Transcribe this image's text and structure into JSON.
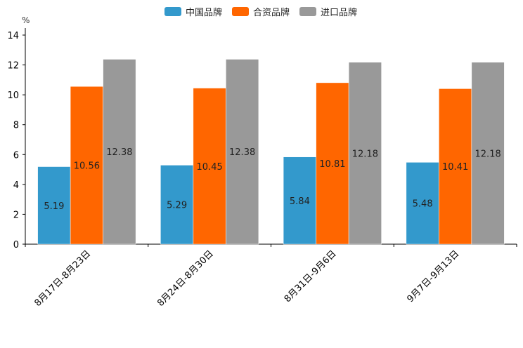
{
  "chart_data": {
    "type": "bar",
    "title": "",
    "unit": "%",
    "xlabel": "",
    "ylabel": "%",
    "ylim": [
      0,
      14
    ],
    "yticks": [
      0,
      2,
      4,
      6,
      8,
      10,
      12,
      14
    ],
    "ytick_labels": [
      "0",
      "2",
      "4",
      "6",
      "8",
      "10",
      "12",
      "14"
    ],
    "categories": [
      "8月17日-8月23日",
      "8月24日-8月30日",
      "8月31日-9月6日",
      "9月7日-9月13日"
    ],
    "legend_position": "top-center",
    "grid": false,
    "series": [
      {
        "name": "中国品牌",
        "color": "#3399CC",
        "values": [
          5.19,
          5.29,
          5.84,
          5.48
        ],
        "value_labels": [
          "5.19",
          "5.29",
          "5.84",
          "5.48"
        ]
      },
      {
        "name": "合资品牌",
        "color": "#FF6600",
        "values": [
          10.56,
          10.45,
          10.81,
          10.41
        ],
        "value_labels": [
          "10.56",
          "10.45",
          "10.81",
          "10.41"
        ]
      },
      {
        "name": "进口品牌",
        "color": "#999999",
        "values": [
          12.38,
          12.38,
          12.18,
          12.18
        ],
        "value_labels": [
          "12.38",
          "12.38",
          "12.18",
          "12.18"
        ]
      }
    ]
  }
}
